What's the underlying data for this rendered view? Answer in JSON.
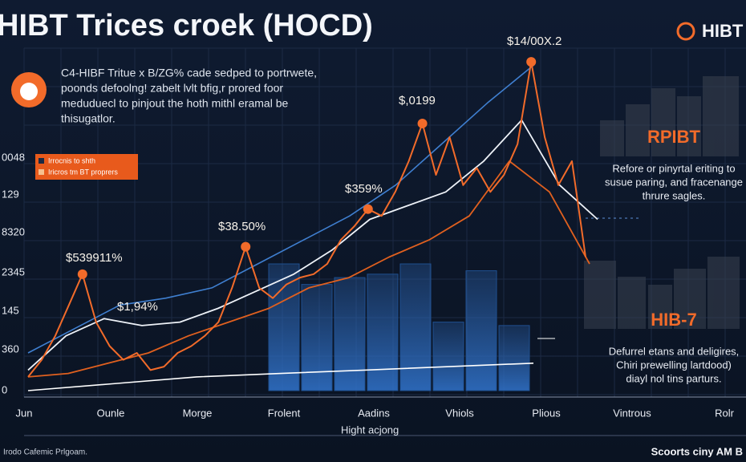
{
  "header": {
    "title": "HIBT Trices croek (HOCD)",
    "brand": "HIBT",
    "description": [
      "C4-HIBF Tritue x B/ZG% cade sedped to portrwete,",
      "poonds defoolng! zabelt lvlt bfig,r prored foor",
      "meduduecl to pinjout the hoth mithl eramal be",
      "thisugatlor."
    ]
  },
  "legend": [
    "Irrocnis to shth",
    "Iricros tm BT proprers"
  ],
  "y_axis_labels": [
    "0048",
    "129",
    "8320",
    "2345",
    "145",
    "360",
    "0"
  ],
  "x_axis_labels": [
    "Jun",
    "Ounle",
    "Morge",
    "Frolent",
    "Aadins",
    "Vhiols",
    "Plious",
    "Vintrous",
    "Rolr"
  ],
  "x_axis_title": "Hight acjong",
  "annotations": [
    "$539911%",
    "$1,94%",
    "$38.50%",
    "$359%",
    "$,0199",
    "$14/00X.2"
  ],
  "plot": {
    "price_line": {
      "color": "#f26b2a",
      "values": [
        4,
        9,
        16,
        25,
        34,
        20,
        13,
        9,
        11,
        6,
        7,
        11,
        13,
        16,
        20,
        30,
        42,
        30,
        27,
        31,
        33,
        34,
        37,
        44,
        48,
        53,
        51,
        58,
        67,
        78,
        63,
        74,
        60,
        65,
        58,
        63,
        72,
        96,
        74,
        60,
        67,
        39
      ]
    },
    "trend_lines": [
      {
        "color": "#3f7fd0",
        "values": [
          11,
          18,
          25,
          27,
          30,
          37,
          44,
          51,
          60,
          72,
          84,
          95
        ]
      },
      {
        "color": "#eef2f8",
        "values": [
          6,
          16,
          21,
          19,
          20,
          24,
          29,
          34,
          41,
          50,
          54,
          58,
          67,
          79,
          60,
          50
        ]
      },
      {
        "color": "#e0601f",
        "values": [
          4,
          5,
          8,
          11,
          16,
          20,
          24,
          30,
          33,
          39,
          44,
          51,
          67,
          58,
          37
        ]
      },
      {
        "color": "#ffffff",
        "values": [
          0,
          2,
          4,
          5,
          6,
          7,
          8
        ]
      }
    ],
    "bars": {
      "color": "#1f4f8f",
      "values": [
        37,
        31,
        33,
        34,
        37,
        20,
        35,
        19
      ]
    }
  },
  "panels": [
    {
      "title": "RPIBT",
      "text": [
        "Refore or pinyrtal eriting to",
        "susue paring, and fracenange",
        "thrure sagles."
      ]
    },
    {
      "title": "HIB-7",
      "text": [
        "Defurrel etans and deligires,",
        "Chiri prewelling lartdood)",
        "diayl nol tins parturs."
      ]
    }
  ],
  "footer": {
    "left": "Irodo Cafemic Prlgoam.",
    "right": "Scoorts ciny AM B"
  }
}
